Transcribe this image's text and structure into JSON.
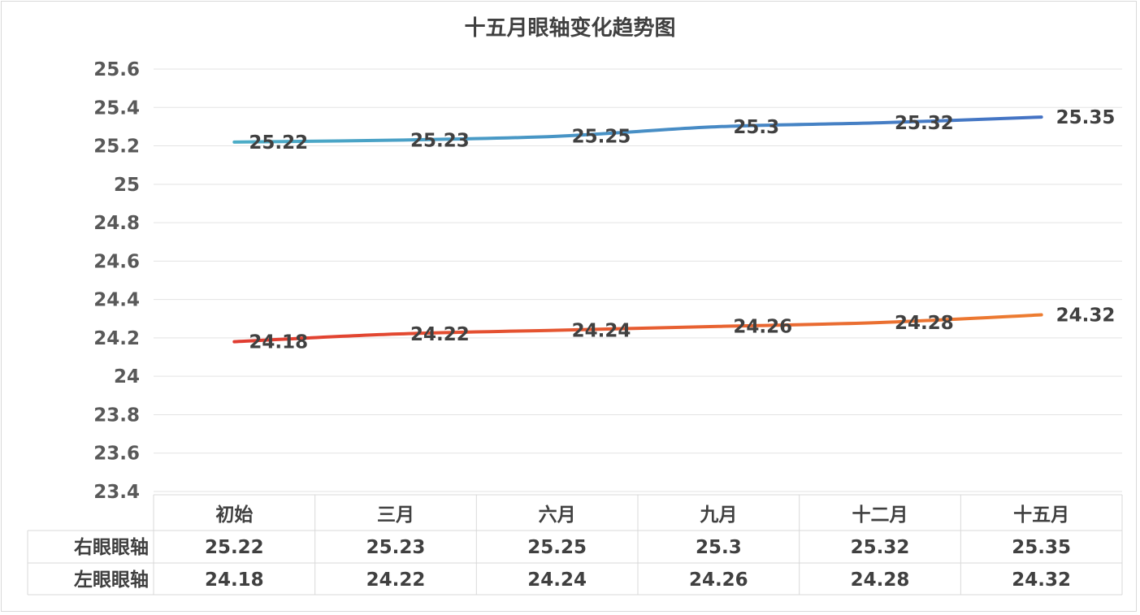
{
  "chart_data": {
    "type": "line",
    "title": "十五月眼轴变化趋势图",
    "categories": [
      "初始",
      "三月",
      "六月",
      "九月",
      "十二月",
      "十五月"
    ],
    "series": [
      {
        "name": "右眼眼轴",
        "values": [
          25.22,
          25.23,
          25.25,
          25.3,
          25.32,
          25.35
        ],
        "value_labels": [
          "25.22",
          "25.23",
          "25.25",
          "25.3",
          "25.32",
          "25.35"
        ],
        "color_start": "#4bacc6",
        "color_end": "#4472c4"
      },
      {
        "name": "左眼眼轴",
        "values": [
          24.18,
          24.22,
          24.24,
          24.26,
          24.28,
          24.32
        ],
        "value_labels": [
          "24.18",
          "24.22",
          "24.24",
          "24.26",
          "24.28",
          "24.32"
        ],
        "color_start": "#e03c31",
        "color_end": "#ed7d31"
      }
    ],
    "ylim": [
      23.4,
      25.6
    ],
    "yticks": [
      "23.4",
      "23.6",
      "23.8",
      "24",
      "24.2",
      "24.4",
      "24.6",
      "24.8",
      "25",
      "25.2",
      "25.4",
      "25.6"
    ],
    "xlabel": "",
    "ylabel": "",
    "grid": true,
    "legend": "data-table"
  }
}
